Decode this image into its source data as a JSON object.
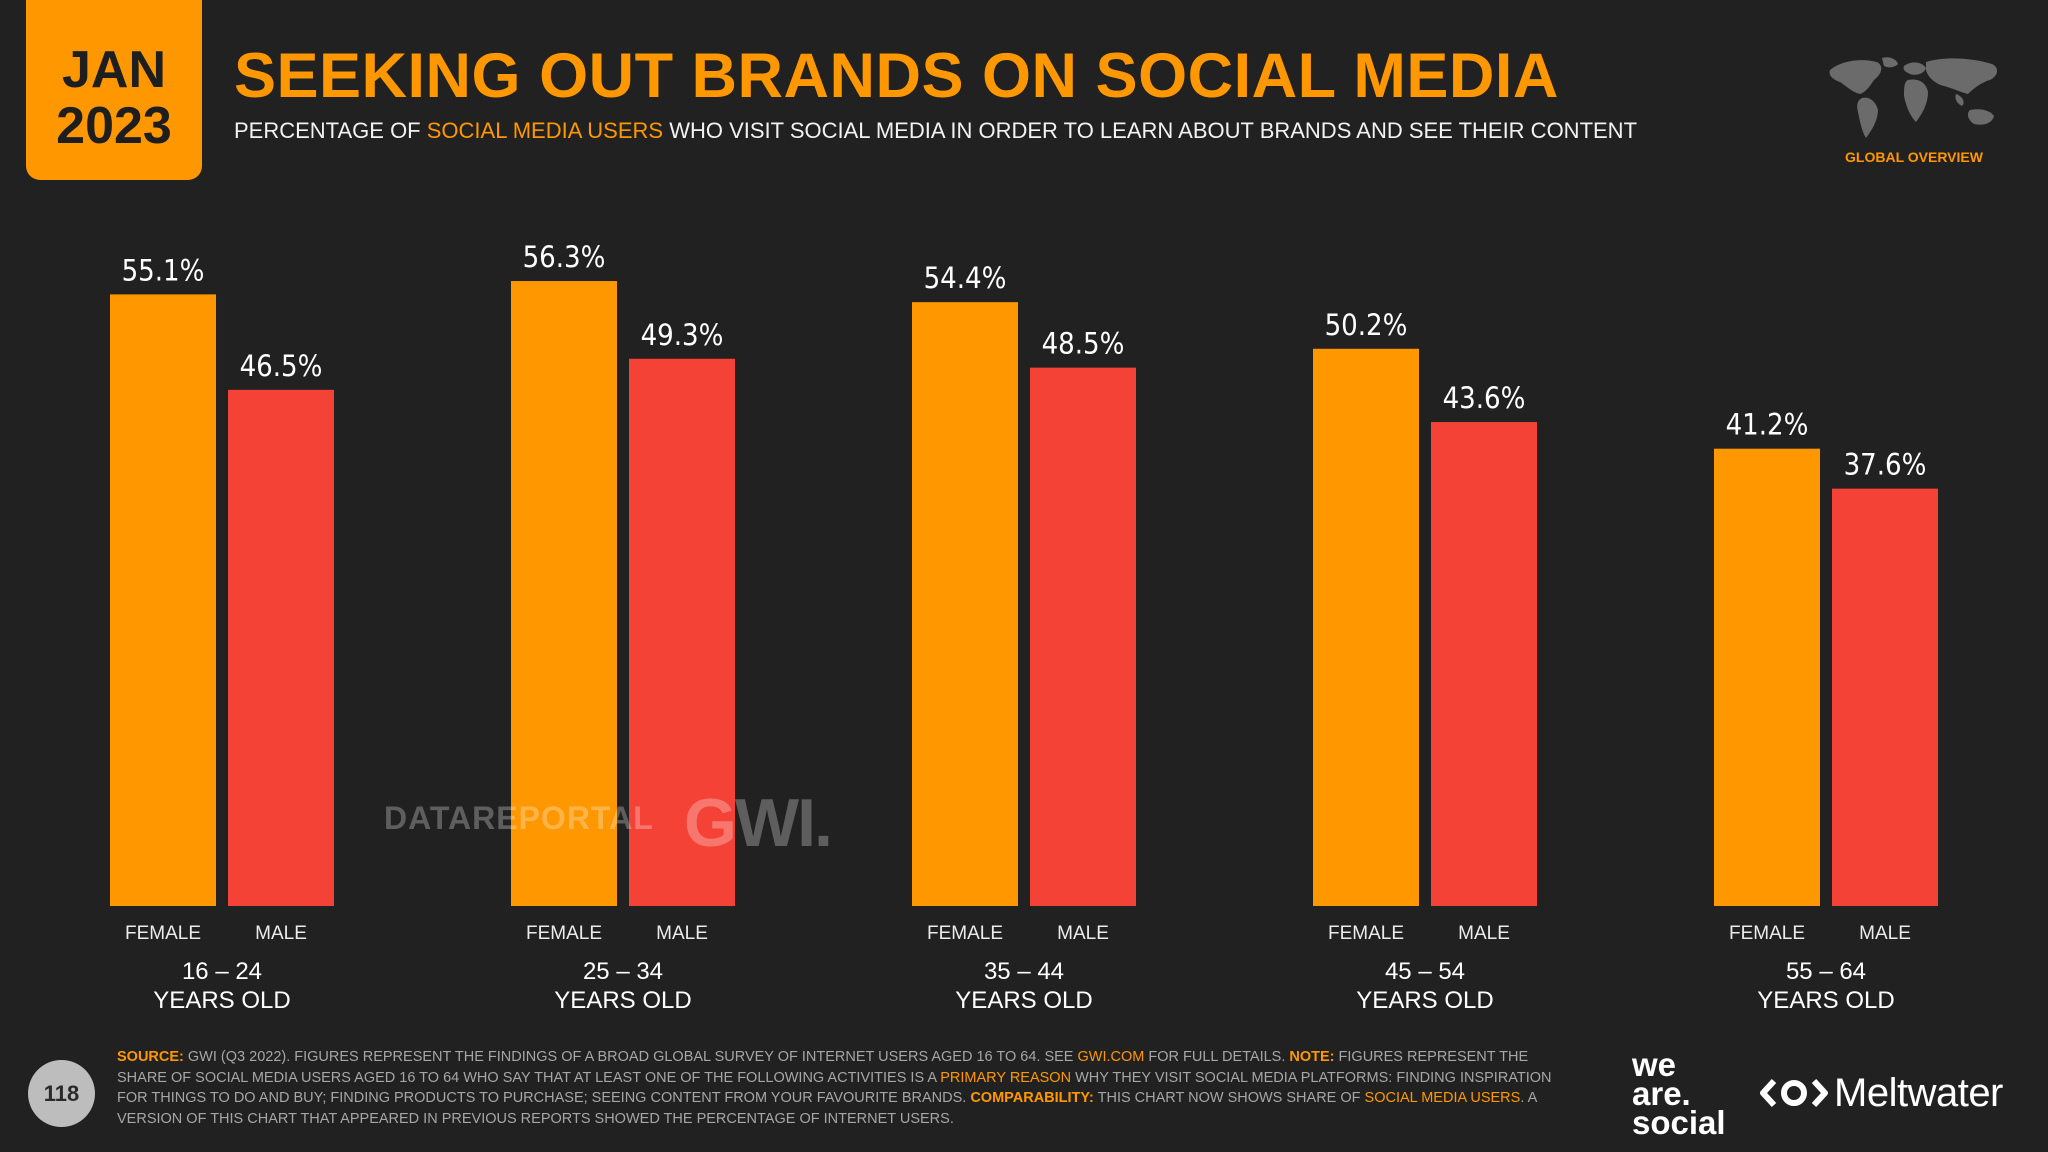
{
  "header": {
    "month": "JAN",
    "year": "2023",
    "title": "SEEKING OUT BRANDS ON SOCIAL MEDIA",
    "subtitle_pre": "PERCENTAGE OF ",
    "subtitle_hl": "SOCIAL MEDIA USERS",
    "subtitle_post": " WHO VISIT SOCIAL MEDIA IN ORDER TO LEARN ABOUT BRANDS AND SEE THEIR CONTENT",
    "badge": "GLOBAL OVERVIEW"
  },
  "chart_data": {
    "type": "bar",
    "title": "SEEKING OUT BRANDS ON SOCIAL MEDIA",
    "categories": [
      "16 – 24",
      "25 – 34",
      "35 – 44",
      "45 – 54",
      "55 – 64"
    ],
    "category_suffix": "YEARS OLD",
    "series": [
      {
        "name": "FEMALE",
        "color": "#ff9800",
        "values": [
          55.1,
          56.3,
          54.4,
          50.2,
          41.2
        ]
      },
      {
        "name": "MALE",
        "color": "#f44336",
        "values": [
          46.5,
          49.3,
          48.5,
          43.6,
          37.6
        ]
      }
    ],
    "value_suffix": "%",
    "ylim": [
      0,
      100
    ],
    "grid": false,
    "legend": "none"
  },
  "watermarks": {
    "datareportal": "DATAREPORTAL",
    "gwi": "GWI."
  },
  "footer": {
    "page": "118",
    "source_label": "SOURCE:",
    "source_text_1": " GWI (Q3 2022). FIGURES REPRESENT THE FINDINGS OF A BROAD GLOBAL SURVEY OF INTERNET USERS AGED 16 TO 64. SEE ",
    "source_link": "GWI.COM",
    "source_text_2": " FOR FULL DETAILS. ",
    "note_label": "NOTE:",
    "note_text_1": " FIGURES REPRESENT THE SHARE OF SOCIAL MEDIA USERS AGED 16 TO 64 WHO SAY THAT AT LEAST ONE OF THE FOLLOWING ACTIVITIES IS A ",
    "note_hl": "PRIMARY REASON",
    "note_text_2": " WHY THEY VISIT SOCIAL MEDIA PLATFORMS: FINDING INSPIRATION FOR THINGS TO DO AND BUY; FINDING PRODUCTS TO PURCHASE; SEEING CONTENT FROM YOUR FAVOURITE BRANDS. ",
    "comp_label": "COMPARABILITY:",
    "comp_text_1": " THIS CHART NOW SHOWS SHARE OF ",
    "comp_hl": "SOCIAL MEDIA USERS",
    "comp_text_2": ". A VERSION OF THIS CHART THAT APPEARED IN PREVIOUS REPORTS SHOWED THE PERCENTAGE OF INTERNET USERS.",
    "brand1_line1": "we",
    "brand1_line2": "are.",
    "brand1_line3": "social",
    "brand2": "Meltwater"
  }
}
